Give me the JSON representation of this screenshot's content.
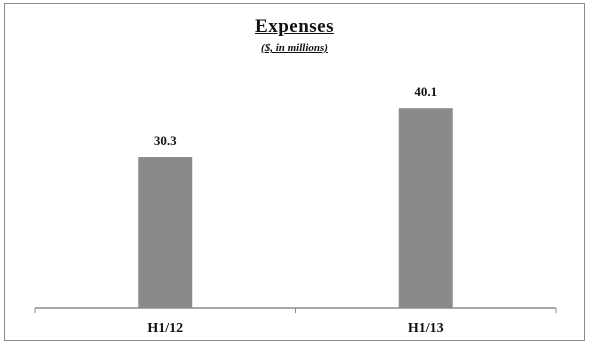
{
  "chart_data": {
    "type": "bar",
    "title": "Expenses",
    "subtitle": "($, in millions)",
    "categories": [
      "H1/12",
      "H1/13"
    ],
    "values": [
      30.3,
      40.1
    ],
    "value_labels": [
      "30.3",
      "40.1"
    ],
    "ylim": [
      0,
      55
    ],
    "grid": false,
    "legend": "none",
    "bar_color": "#8a8a8a",
    "axis_color": "#8c8c8c"
  }
}
